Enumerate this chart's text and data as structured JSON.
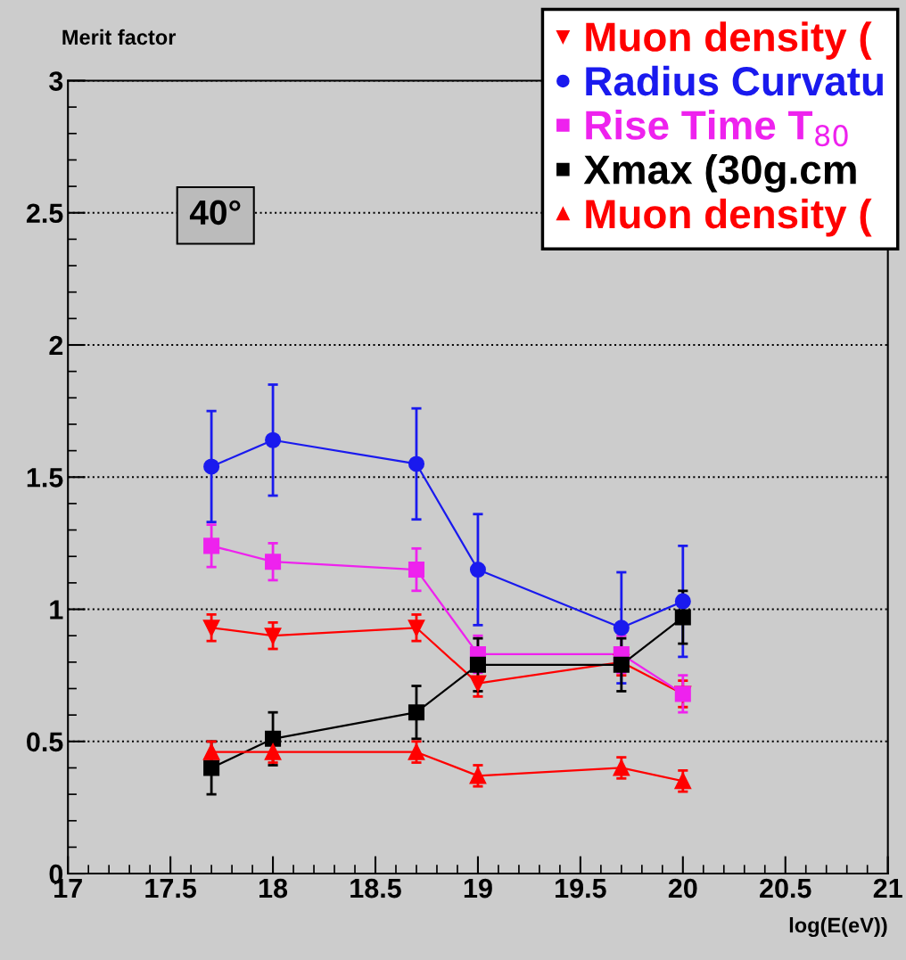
{
  "chart_data": {
    "type": "line",
    "ylabel": "Merit factor",
    "xlabel": "log(E(eV))",
    "x": [
      17.7,
      18,
      18.7,
      19,
      19.7,
      20
    ],
    "xlim": [
      17,
      21
    ],
    "xticks": [
      17,
      17.5,
      18,
      18.5,
      19,
      19.5,
      20,
      20.5,
      21
    ],
    "ylim": [
      0,
      3
    ],
    "yticks": [
      0,
      0.5,
      1,
      1.5,
      2,
      2.5,
      3
    ],
    "grid": "y",
    "legend": "top right",
    "annotations": [
      "40°"
    ],
    "series": [
      {
        "name": "Muon density (",
        "color": "#ff0000",
        "marker": "triangle_down",
        "values": [
          0.93,
          0.9,
          0.93,
          0.72,
          0.8,
          0.68
        ],
        "errors": [
          0.05,
          0.05,
          0.05,
          0.05,
          0.05,
          0.05
        ]
      },
      {
        "name": "Radius Curvatu",
        "color": "#1a1aee",
        "marker": "circle",
        "values": [
          1.54,
          1.64,
          1.55,
          1.15,
          0.93,
          1.03
        ],
        "errors": [
          0.21,
          0.21,
          0.21,
          0.21,
          0.21,
          0.21
        ]
      },
      {
        "name": "Rise Time T$_{80}$",
        "color": "#ee22ee",
        "marker": "square",
        "values": [
          1.24,
          1.18,
          1.15,
          0.83,
          0.83,
          0.68
        ],
        "errors": [
          0.08,
          0.07,
          0.08,
          0.07,
          0.07,
          0.07
        ]
      },
      {
        "name": "Xmax (30g.cm",
        "color": "#000000",
        "marker": "square",
        "values": [
          0.4,
          0.51,
          0.61,
          0.79,
          0.79,
          0.97
        ],
        "errors": [
          0.1,
          0.1,
          0.1,
          0.1,
          0.1,
          0.1
        ]
      },
      {
        "name": "Muon density (",
        "color": "#ff0000",
        "marker": "triangle",
        "values": [
          0.46,
          0.46,
          0.46,
          0.37,
          0.4,
          0.35
        ],
        "errors": [
          0.04,
          0.04,
          0.04,
          0.04,
          0.04,
          0.04
        ]
      }
    ]
  }
}
